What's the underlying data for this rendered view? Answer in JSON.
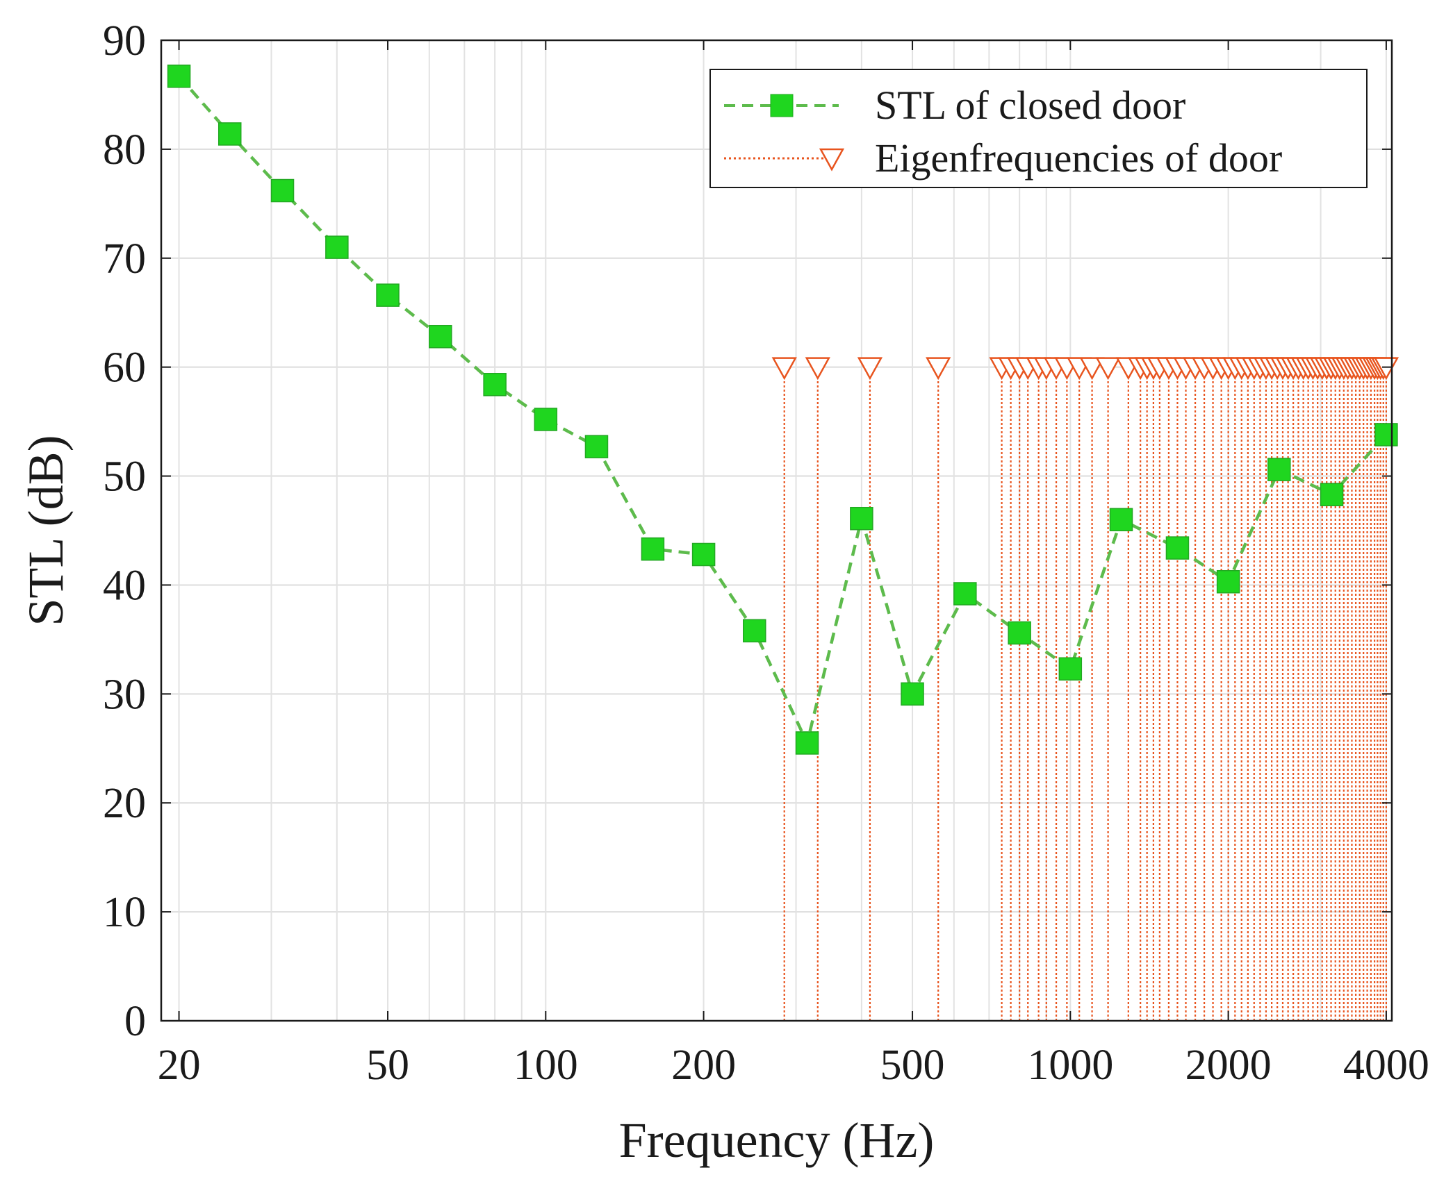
{
  "chart_data": {
    "type": "line",
    "xlabel": "Frequency (Hz)",
    "ylabel": "STL (dB)",
    "xscale": "log",
    "xlim": [
      18.5,
      4100
    ],
    "ylim": [
      0,
      90
    ],
    "xticks": [
      20,
      50,
      100,
      200,
      500,
      1000,
      2000,
      4000
    ],
    "xtick_labels": [
      "20",
      "50",
      "100",
      "200",
      "500",
      "1000",
      "2000",
      "4000"
    ],
    "yticks": [
      0,
      10,
      20,
      30,
      40,
      50,
      60,
      70,
      80,
      90
    ],
    "ytick_labels": [
      "0",
      "10",
      "20",
      "30",
      "40",
      "50",
      "60",
      "70",
      "80",
      "90"
    ],
    "grid": true,
    "legend_position": "top-right",
    "series": [
      {
        "name": "STL of closed door",
        "style": "dashed line, filled square markers",
        "color": "#1fd61f",
        "line_color": "#5dbb4c",
        "x": [
          20,
          25,
          31.5,
          40,
          50,
          63,
          80,
          100,
          125,
          160,
          200,
          250,
          315,
          400,
          500,
          630,
          800,
          1000,
          1250,
          1600,
          2000,
          2500,
          3150,
          4000
        ],
        "y": [
          86.7,
          81.4,
          76.2,
          71.0,
          66.6,
          62.8,
          58.4,
          55.2,
          52.7,
          43.3,
          42.8,
          35.8,
          25.5,
          46.1,
          30.0,
          39.2,
          35.6,
          32.3,
          46.0,
          43.4,
          40.3,
          50.6,
          48.3,
          53.8
        ]
      },
      {
        "name": "Eigenfrequencies of door",
        "style": "dotted vertical stems, open downward-triangle markers",
        "color": "#e8541e",
        "marker_y": 60,
        "x": [
          285,
          330,
          415,
          560,
          740,
          770,
          800,
          830,
          870,
          900,
          940,
          985,
          1040,
          1100,
          1180,
          1290,
          1360,
          1400,
          1440,
          1480,
          1540,
          1600,
          1660,
          1730,
          1800,
          1870,
          1940,
          2000,
          2060,
          2120,
          2180,
          2240,
          2300,
          2360,
          2420,
          2480,
          2540,
          2600,
          2660,
          2720,
          2780,
          2840,
          2900,
          2960,
          3020,
          3080,
          3140,
          3200,
          3260,
          3320,
          3380,
          3440,
          3500,
          3560,
          3620,
          3680,
          3740,
          3800,
          3850,
          3900,
          3950,
          4000
        ]
      }
    ]
  }
}
